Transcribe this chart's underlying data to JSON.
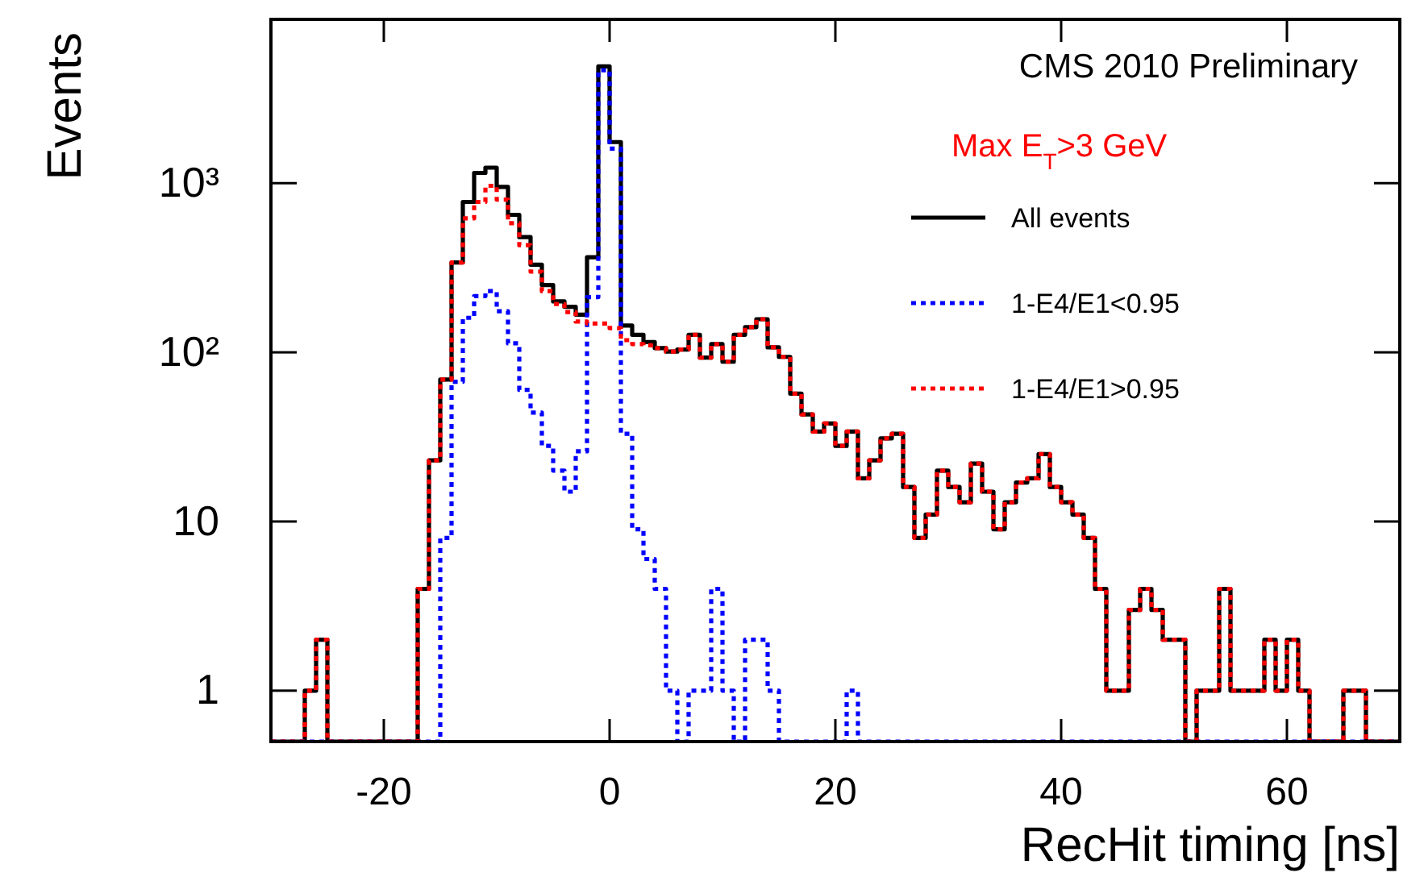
{
  "chart_data": {
    "type": "histogram",
    "xlabel": "RecHit timing [ns]",
    "ylabel": "Events",
    "annotations": [
      "CMS 2010 Preliminary",
      "Max E$_{T}$>3 GeV"
    ],
    "bins": [
      -30,
      -29,
      -28,
      -27,
      -26,
      -25,
      -24,
      -23,
      -22,
      -21,
      -20,
      -19,
      -18,
      -17,
      -16,
      -15,
      -14,
      -13,
      -12,
      -11,
      -10,
      -9,
      -8,
      -7,
      -6,
      -5,
      -4,
      -3,
      -2,
      -1,
      0,
      1,
      2,
      3,
      4,
      5,
      6,
      7,
      8,
      9,
      10,
      11,
      12,
      13,
      14,
      15,
      16,
      17,
      18,
      19,
      20,
      21,
      22,
      23,
      24,
      25,
      26,
      27,
      28,
      29,
      30,
      31,
      32,
      33,
      34,
      35,
      36,
      37,
      38,
      39,
      40,
      41,
      42,
      43,
      44,
      45,
      46,
      47,
      48,
      49,
      50,
      51,
      52,
      53,
      54,
      55,
      56,
      57,
      58,
      59,
      60,
      61,
      62,
      63,
      64,
      65,
      66,
      67,
      68,
      69,
      70
    ],
    "series": [
      {
        "name": "All events",
        "color": "#000000",
        "line_style": "solid",
        "values": [
          null,
          null,
          null,
          1,
          2,
          null,
          null,
          null,
          null,
          null,
          null,
          null,
          null,
          4,
          23,
          69,
          340,
          775,
          1150,
          1235,
          950,
          650,
          480,
          330,
          250,
          200,
          186,
          167,
          365,
          4900,
          1750,
          144,
          127,
          115,
          106,
          101,
          104,
          127,
          93,
          112,
          88,
          127,
          141,
          157,
          107,
          94,
          57,
          43,
          34,
          38,
          28,
          34,
          18,
          23,
          31,
          33,
          16,
          8,
          11,
          20,
          16,
          13,
          22,
          15,
          9,
          13,
          17,
          18,
          25,
          16,
          13,
          11,
          8,
          4,
          1,
          1,
          3,
          4,
          3,
          2,
          2,
          null,
          1,
          1,
          4,
          1,
          1,
          1,
          2,
          1,
          2,
          1,
          null,
          null,
          null,
          1,
          1,
          null,
          null,
          null
        ]
      },
      {
        "name": "1-E4/E1<0.95",
        "color": "#0000ff",
        "line_style": "dotted",
        "values": [
          null,
          null,
          null,
          null,
          null,
          null,
          null,
          null,
          null,
          null,
          null,
          null,
          null,
          null,
          null,
          8,
          67,
          160,
          215,
          230,
          175,
          113,
          60,
          44,
          28,
          20,
          15,
          26,
          212,
          4650,
          1600,
          33,
          9,
          6,
          4,
          1,
          null,
          1,
          1,
          4,
          1,
          null,
          2,
          2,
          1,
          null,
          null,
          null,
          null,
          null,
          null,
          1,
          null,
          null,
          null,
          null,
          null,
          null,
          null,
          null,
          null,
          null,
          null,
          null,
          null,
          null,
          null,
          null,
          null,
          null,
          null,
          null,
          null,
          null,
          null,
          null,
          null,
          null,
          null,
          null,
          null,
          null,
          null,
          null,
          null,
          null,
          null,
          null,
          null,
          null,
          null,
          null,
          null,
          null,
          null,
          null,
          null,
          null,
          null,
          null
        ]
      },
      {
        "name": "1-E4/E1>0.95",
        "color": "#ff0000",
        "line_style": "dotted",
        "values": [
          null,
          null,
          null,
          1,
          2,
          null,
          null,
          null,
          null,
          null,
          null,
          null,
          null,
          4,
          23,
          69,
          340,
          620,
          775,
          965,
          800,
          580,
          430,
          300,
          230,
          193,
          173,
          152,
          148,
          148,
          139,
          118,
          112,
          110,
          106,
          101,
          104,
          127,
          93,
          112,
          88,
          127,
          141,
          157,
          107,
          94,
          57,
          43,
          34,
          38,
          28,
          34,
          18,
          23,
          31,
          33,
          16,
          8,
          11,
          20,
          16,
          13,
          22,
          15,
          9,
          13,
          17,
          18,
          25,
          16,
          13,
          11,
          8,
          4,
          1,
          1,
          3,
          4,
          3,
          2,
          2,
          null,
          1,
          1,
          4,
          1,
          1,
          1,
          2,
          1,
          2,
          1,
          null,
          null,
          null,
          1,
          1,
          null,
          null,
          null
        ]
      }
    ],
    "log": "y",
    "xlim": [
      -30,
      70
    ],
    "xticks": [
      -20,
      0,
      20,
      40,
      60
    ],
    "ylim": [
      0.5,
      9300
    ],
    "yticks": [
      1,
      10,
      {
        "value": 100,
        "label": "10²"
      },
      {
        "value": 1000,
        "label": "10³"
      }
    ],
    "legend": "top right",
    "grid": false
  }
}
